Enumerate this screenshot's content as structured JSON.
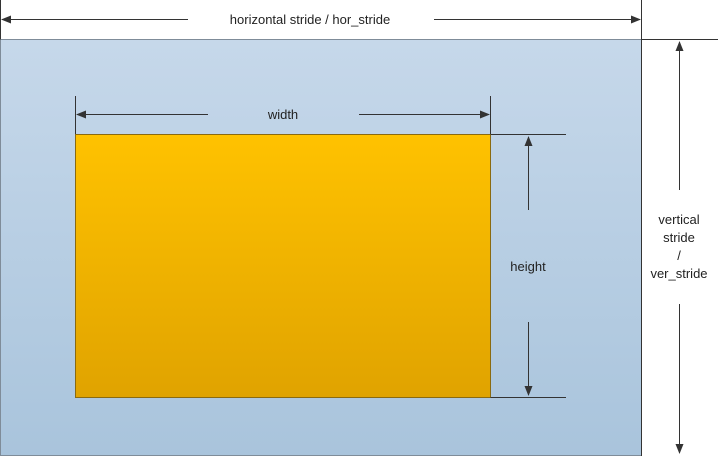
{
  "labels": {
    "horizontal_stride": "horizontal stride / hor_stride",
    "width": "width",
    "height": "height",
    "vertical_stride_line1": "vertical",
    "vertical_stride_line2": "stride",
    "vertical_stride_line3": "/",
    "vertical_stride_line4": "ver_stride"
  },
  "colors": {
    "buffer_top": "#c6d8ea",
    "buffer_bottom": "#a9c4dc",
    "buffer_border": "#7f8c99",
    "image_top": "#ffc200",
    "image_bottom": "#e0a300",
    "image_border": "#8a6a10",
    "line": "#333333"
  }
}
